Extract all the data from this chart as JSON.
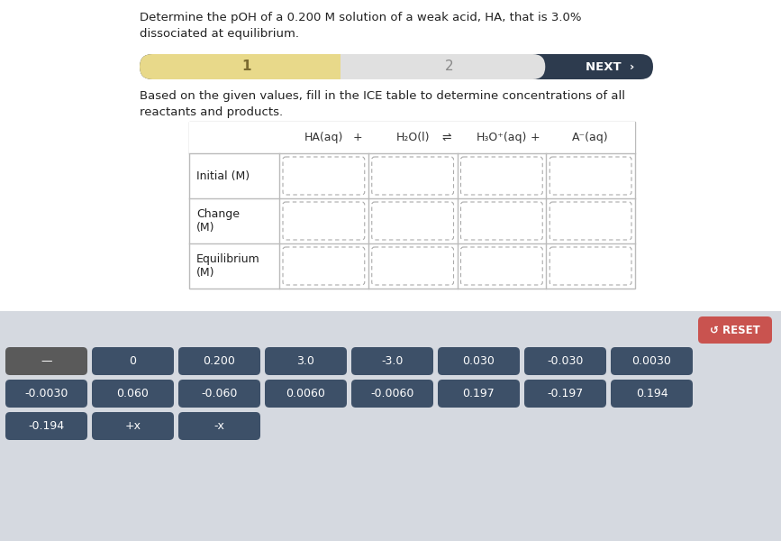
{
  "title_text": "Determine the pOH of a 0.200 M solution of a weak acid, HA, that is 3.0%\ndissociated at equilibrium.",
  "subtitle_text": "Based on the given values, fill in the ICE table to determine concentrations of all\nreactants and products.",
  "nav_bar": {
    "bg_color": "#2d3b4e",
    "section1_label": "1",
    "section1_color": "#e8d98a",
    "section2_label": "2",
    "section2_color": "#e0e0e0",
    "next_label": "NEXT  ›",
    "next_color": "#2d3b4e",
    "next_text_color": "#ffffff"
  },
  "table": {
    "chem_header": [
      "HA(aq)",
      "+",
      "H₂O(l)",
      "⇌",
      "H₃O⁺(aq)",
      "+",
      "A⁻(aq)"
    ],
    "row_labels": [
      "Initial (M)",
      "Change\n(M)",
      "Equilibrium\n(M)"
    ],
    "cell_border_color": "#aaaaaa",
    "cell_bg": "#ffffff"
  },
  "bottom_bg": "#d5d9e0",
  "reset_btn": {
    "label": "↺ RESET",
    "bg_color": "#c9534f",
    "text_color": "#ffffff"
  },
  "tile_rows": [
    [
      "—",
      "0",
      "0.200",
      "3.0",
      "-3.0",
      "0.030",
      "-0.030",
      "0.0030"
    ],
    [
      "-0.0030",
      "0.060",
      "-0.060",
      "0.0060",
      "-0.0060",
      "0.197",
      "-0.197",
      "0.194"
    ],
    [
      "-0.194",
      "+x",
      "-x"
    ]
  ],
  "tile_bg_dark": "#3d5068",
  "tile_bg_gray": "#5a5a5a",
  "tile_text_color": "#ffffff",
  "bg_color": "#ffffff",
  "title_color": "#222222",
  "subtitle_color": "#222222"
}
